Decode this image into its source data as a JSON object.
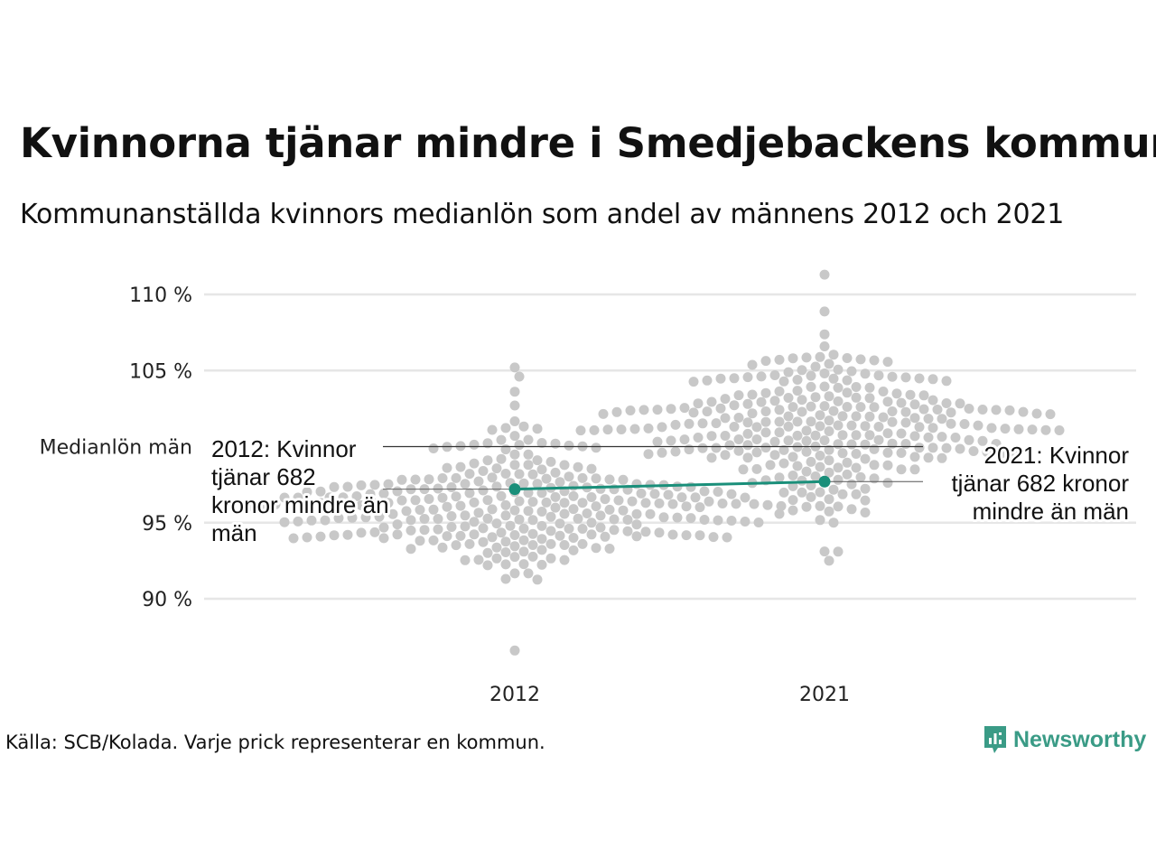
{
  "title": "Kvinnorna tjänar mindre i Smedjebackens kommun",
  "subtitle": "Kommunanställda kvinnors medianlön som andel av männens 2012 och 2021",
  "source": "Källa: SCB/Kolada. Varje prick representerar en kommun.",
  "brand": {
    "name": "Newsworthy"
  },
  "colors": {
    "dots": "#c8c8c8",
    "highlight": "#1a8f7a",
    "grid": "#e6e6e6",
    "reference": "#333333",
    "brand": "#3a9b86"
  },
  "chart_data": {
    "type": "scatter",
    "title": "Kvinnorna tjänar mindre i Smedjebackens kommun",
    "subtitle": "Kommunanställda kvinnors medianlön som andel av männens 2012 och 2021",
    "categories": [
      "2012",
      "2021"
    ],
    "y_ticks": [
      {
        "value": 90,
        "label": "90 %"
      },
      {
        "value": 95,
        "label": "95 %"
      },
      {
        "value": 105,
        "label": "105 %"
      },
      {
        "value": 110,
        "label": "110 %"
      }
    ],
    "ylim": [
      86,
      112
    ],
    "grid": true,
    "reference_line": {
      "label": "Medianlön män",
      "value": 100
    },
    "highlight": {
      "name": "Smedjebackens kommun",
      "values": [
        97.2,
        97.7
      ],
      "annotations": [
        "2012: Kvinnor tjänar 682 kronor mindre än män",
        "2021: Kvinnor tjänar 682 kronor mindre än män"
      ]
    },
    "distribution": [
      {
        "year": "2012",
        "n": 290,
        "median": 96.0,
        "sd": 2.3,
        "min": 86.6,
        "max": 105.2
      },
      {
        "year": "2021",
        "n": 290,
        "median": 101.5,
        "sd": 2.4,
        "min": 92.5,
        "max": 111.3
      }
    ],
    "note": "Varje prick representerar en kommun."
  }
}
